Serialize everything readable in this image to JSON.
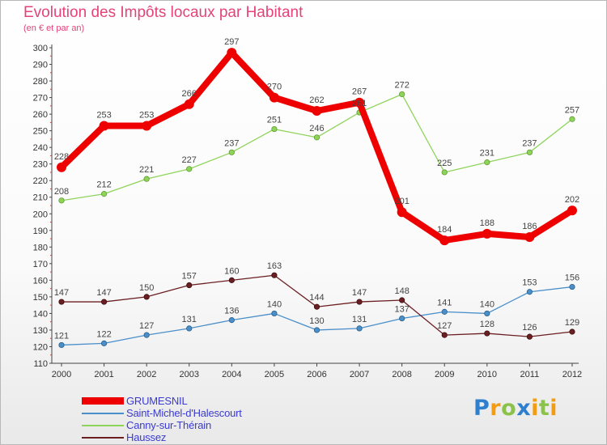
{
  "title": "Evolution des Impôts locaux par Habitant",
  "subtitle": "(en € et par an)",
  "logo_text": "Proxiti",
  "chart_data": {
    "type": "line",
    "title": "Evolution des Impôts locaux par Habitant",
    "subtitle": "(en € et par an)",
    "xlabel": "",
    "ylabel": "",
    "x": [
      "2000",
      "2001",
      "2002",
      "2003",
      "2004",
      "2005",
      "2006",
      "2007",
      "2008",
      "2009",
      "2010",
      "2011",
      "2012"
    ],
    "ylim": [
      110,
      300
    ],
    "yticks": [
      110,
      120,
      130,
      140,
      150,
      160,
      170,
      180,
      190,
      200,
      210,
      220,
      230,
      240,
      250,
      260,
      270,
      280,
      290,
      300
    ],
    "grid": false,
    "legend_position": "bottom-left",
    "series": [
      {
        "name": "GRUMESNIL",
        "color": "#ee0000",
        "values": [
          228,
          253,
          253,
          266,
          297,
          270,
          262,
          267,
          201,
          184,
          188,
          186,
          202
        ]
      },
      {
        "name": "Saint-Michel-d'Halescourt",
        "color": "#4a8fc9",
        "values": [
          121,
          122,
          127,
          131,
          136,
          140,
          130,
          131,
          137,
          141,
          140,
          153,
          156
        ]
      },
      {
        "name": "Canny-sur-Thérain",
        "color": "#8fd45a",
        "values": [
          208,
          212,
          221,
          227,
          237,
          251,
          246,
          261,
          272,
          225,
          231,
          237,
          257
        ]
      },
      {
        "name": "Haussez",
        "color": "#6b1f22",
        "values": [
          147,
          147,
          150,
          157,
          160,
          163,
          144,
          147,
          148,
          127,
          128,
          126,
          129
        ]
      }
    ]
  }
}
